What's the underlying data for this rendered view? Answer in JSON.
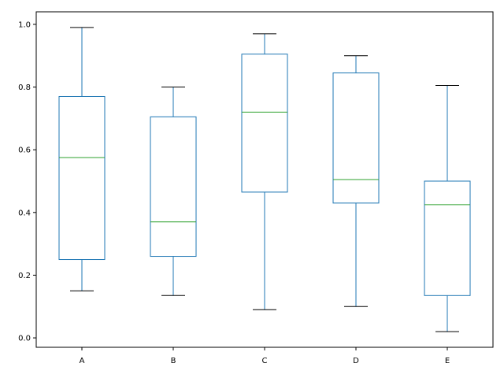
{
  "chart_data": {
    "type": "box",
    "categories": [
      "A",
      "B",
      "C",
      "D",
      "E"
    ],
    "boxes": [
      {
        "label": "A",
        "whisker_low": 0.15,
        "q1": 0.25,
        "median": 0.575,
        "q3": 0.77,
        "whisker_high": 0.99
      },
      {
        "label": "B",
        "whisker_low": 0.135,
        "q1": 0.26,
        "median": 0.37,
        "q3": 0.705,
        "whisker_high": 0.8
      },
      {
        "label": "C",
        "whisker_low": 0.09,
        "q1": 0.465,
        "median": 0.72,
        "q3": 0.905,
        "whisker_high": 0.97
      },
      {
        "label": "D",
        "whisker_low": 0.1,
        "q1": 0.43,
        "median": 0.505,
        "q3": 0.845,
        "whisker_high": 0.9
      },
      {
        "label": "E",
        "whisker_low": 0.02,
        "q1": 0.135,
        "median": 0.425,
        "q3": 0.5,
        "whisker_high": 0.805
      }
    ],
    "yticks": [
      "0.0",
      "0.2",
      "0.4",
      "0.6",
      "0.8",
      "1.0"
    ],
    "ylim": [
      -0.03,
      1.04
    ],
    "title": "",
    "xlabel": "",
    "ylabel": "",
    "grid": false,
    "colors": {
      "box": "#1f77b4",
      "median": "#2ca02c",
      "cap": "#000000",
      "axes": "#000000"
    }
  }
}
